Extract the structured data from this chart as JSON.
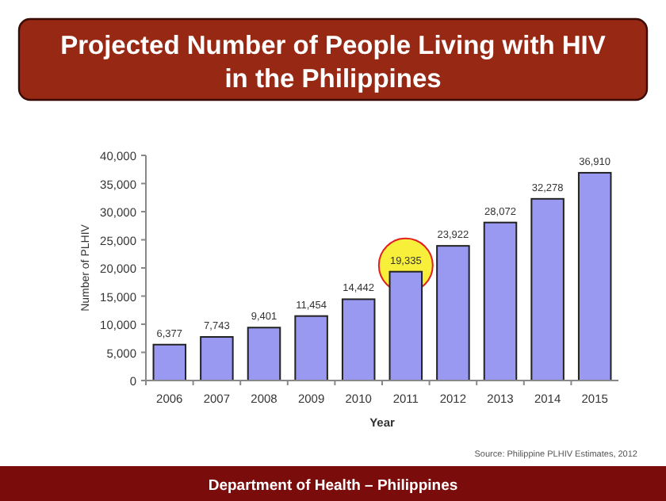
{
  "chart_data": {
    "type": "bar",
    "title": "Projected Number of People Living with HIV in the Philippines",
    "xlabel": "Year",
    "ylabel": "Number of PLHIV",
    "categories": [
      "2006",
      "2007",
      "2008",
      "2009",
      "2010",
      "2011",
      "2012",
      "2013",
      "2014",
      "2015"
    ],
    "values": [
      6377,
      7743,
      9401,
      11454,
      14442,
      19335,
      23922,
      28072,
      32278,
      36910
    ],
    "value_labels": [
      "6,377",
      "7,743",
      "9,401",
      "11,454",
      "14,442",
      "19,335",
      "23,922",
      "28,072",
      "32,278",
      "36,910"
    ],
    "color": "#9999f2",
    "ylim": [
      0,
      40000
    ],
    "yticks": [
      {
        "value": 0,
        "label": "0"
      },
      {
        "value": 5000,
        "label": "5,000"
      },
      {
        "value": 10000,
        "label": "10,000"
      },
      {
        "value": 15000,
        "label": "15,000"
      },
      {
        "value": 20000,
        "label": "20,000"
      },
      {
        "value": 25000,
        "label": "25,000"
      },
      {
        "value": 30000,
        "label": "30,000"
      },
      {
        "value": 35000,
        "label": "35,000"
      },
      {
        "value": 40000,
        "label": "40,000"
      }
    ],
    "annotations": [
      "Source: Philippine PLHIV Estimates, 2012",
      "Department of Health – Philippines"
    ]
  }
}
